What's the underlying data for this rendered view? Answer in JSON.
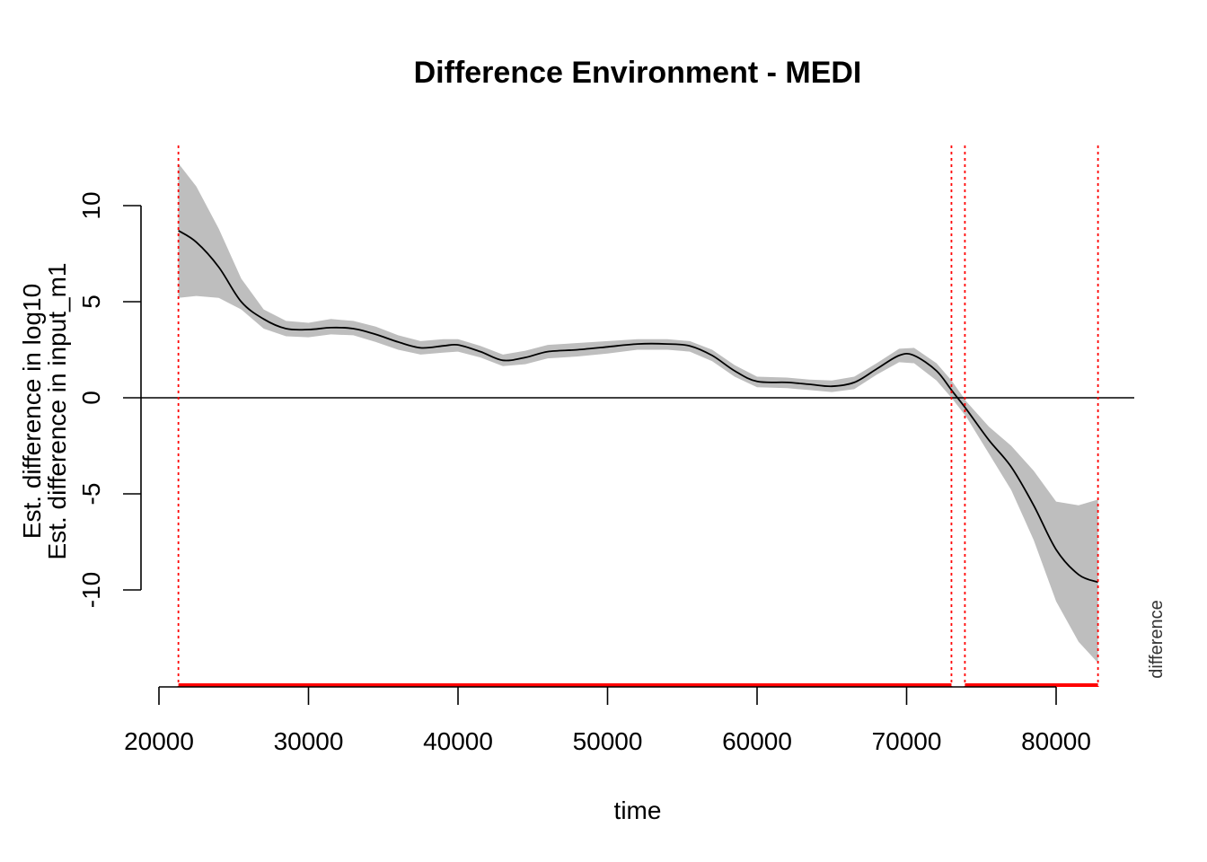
{
  "chart_data": {
    "type": "line",
    "title": "Difference Environment - MEDI",
    "xlabel": "time",
    "ylabel_lines": [
      "Est. difference in log10",
      "Est. difference in input_m1"
    ],
    "side_label": "difference",
    "xlim": [
      20000,
      85000
    ],
    "ylim": [
      -15,
      10
    ],
    "x_ticks": [
      20000,
      30000,
      40000,
      50000,
      60000,
      70000,
      80000
    ],
    "x_tick_labels": [
      "20000",
      "30000",
      "40000",
      "50000",
      "60000",
      "70000",
      "80000"
    ],
    "y_ticks": [
      -10,
      -5,
      0,
      5,
      10
    ],
    "y_tick_labels": [
      "-10",
      "-5",
      "0",
      "5",
      "10"
    ],
    "zero_line": true,
    "series": [
      {
        "x": [
          21300,
          22500,
          24000,
          25500,
          27000,
          28500,
          30000,
          31500,
          33000,
          34500,
          36000,
          37500,
          39000,
          40000,
          41500,
          43000,
          44500,
          46000,
          48000,
          50000,
          52000,
          54000,
          55500,
          57000,
          58500,
          60000,
          62000,
          63500,
          65000,
          66500,
          68000,
          69500,
          70500,
          72000,
          73000,
          74000,
          75500,
          77000,
          78500,
          80000,
          81500,
          82800
        ],
        "y": [
          8.7,
          8.1,
          6.8,
          5.0,
          4.1,
          3.6,
          3.55,
          3.65,
          3.6,
          3.3,
          2.9,
          2.6,
          2.7,
          2.75,
          2.4,
          1.95,
          2.1,
          2.4,
          2.5,
          2.65,
          2.8,
          2.8,
          2.7,
          2.2,
          1.4,
          0.85,
          0.8,
          0.7,
          0.6,
          0.8,
          1.5,
          2.2,
          2.2,
          1.4,
          0.4,
          -0.6,
          -2.2,
          -3.6,
          -5.6,
          -7.9,
          -9.2,
          -9.6
        ],
        "upper": [
          12.2,
          11.0,
          8.8,
          6.2,
          4.6,
          4.0,
          3.9,
          4.1,
          4.0,
          3.7,
          3.25,
          2.95,
          3.05,
          3.05,
          2.7,
          2.25,
          2.45,
          2.75,
          2.85,
          2.95,
          3.05,
          3.05,
          2.95,
          2.5,
          1.7,
          1.1,
          1.05,
          0.95,
          0.9,
          1.1,
          1.8,
          2.55,
          2.6,
          1.8,
          0.9,
          -0.2,
          -1.5,
          -2.5,
          -3.8,
          -5.4,
          -5.6,
          -5.3
        ],
        "lower": [
          5.2,
          5.3,
          5.2,
          4.6,
          3.6,
          3.2,
          3.15,
          3.3,
          3.25,
          2.9,
          2.5,
          2.25,
          2.35,
          2.4,
          2.1,
          1.65,
          1.75,
          2.05,
          2.15,
          2.3,
          2.5,
          2.5,
          2.4,
          1.9,
          1.1,
          0.55,
          0.5,
          0.4,
          0.3,
          0.45,
          1.2,
          1.85,
          1.8,
          0.9,
          0.0,
          -1.0,
          -2.9,
          -4.8,
          -7.4,
          -10.6,
          -12.7,
          -13.8
        ]
      }
    ],
    "vertical_markers": [
      21300,
      73000,
      73900,
      82800
    ],
    "significant_ranges": [
      [
        21300,
        73000
      ],
      [
        73900,
        82800
      ]
    ],
    "colors": {
      "line": "#000000",
      "band": "#bebebe",
      "marker": "#ff0000",
      "range": "#ff0000"
    }
  }
}
